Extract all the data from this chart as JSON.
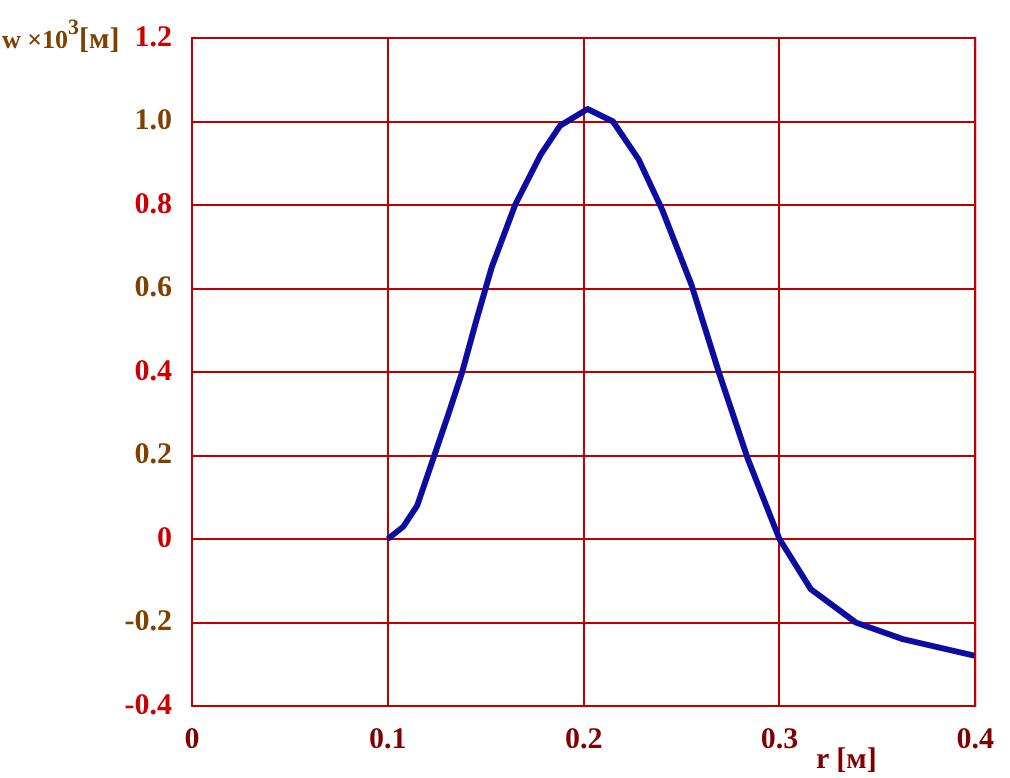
{
  "chart_data": {
    "type": "line",
    "xlabel": "r [м]",
    "ylabel": "w ×10$^{3}$[м]",
    "series": [
      {
        "color": "#0c0ca0",
        "x": [
          0.1,
          0.108,
          0.115,
          0.123,
          0.131,
          0.138,
          0.145,
          0.153,
          0.165,
          0.178,
          0.188,
          0.202,
          0.215,
          0.228,
          0.24,
          0.255,
          0.269,
          0.284,
          0.3,
          0.316,
          0.339,
          0.363,
          0.4
        ],
        "values": [
          0,
          0.03,
          0.08,
          0.19,
          0.3,
          0.4,
          0.52,
          0.65,
          0.8,
          0.92,
          0.99,
          1.03,
          1.0,
          0.91,
          0.79,
          0.61,
          0.4,
          0.19,
          0,
          -0.12,
          -0.2,
          -0.24,
          -0.28
        ]
      }
    ],
    "xlim": [
      0,
      0.4
    ],
    "xticks": [
      0,
      0.1,
      0.2,
      0.3,
      0.4
    ],
    "ylim": [
      -0.4,
      1.2
    ],
    "yticks": [
      -0.4,
      -0.2,
      0,
      0.2,
      0.4,
      0.6,
      0.8,
      {
        "value": 1,
        "label": "1.0"
      },
      1.2
    ],
    "grid": true,
    "legend": false,
    "marker": "none",
    "line_style": "solid"
  }
}
